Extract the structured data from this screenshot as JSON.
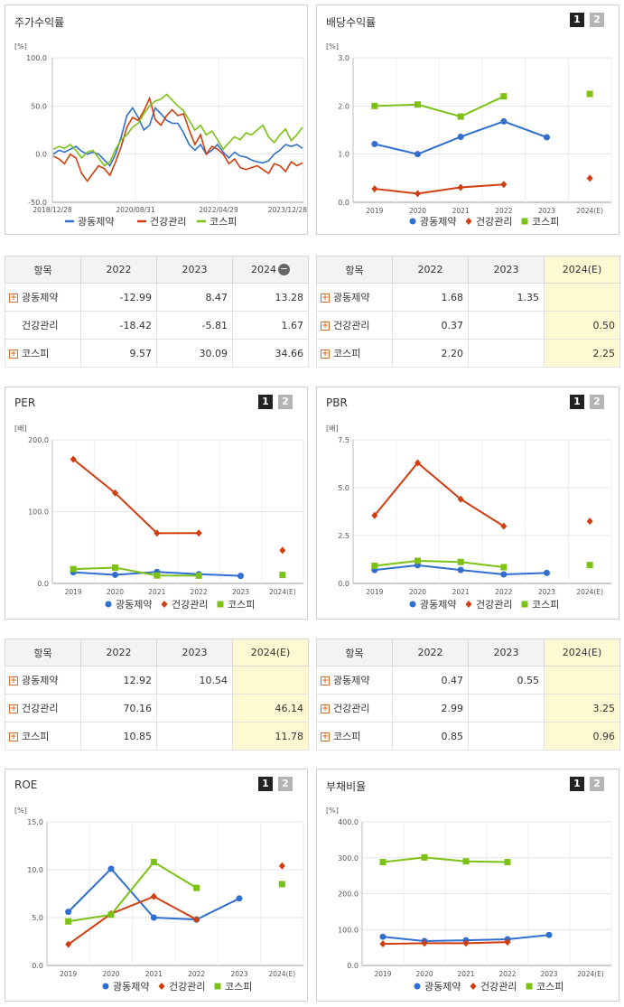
{
  "colors": {
    "company": "#2f6fd0",
    "industry": "#d23d0f",
    "kospi": "#7cc215"
  },
  "legend": [
    "광동제약",
    "건강관리",
    "코스피"
  ],
  "tab_buttons": [
    "1",
    "2"
  ],
  "charts": {
    "price": {
      "title": "주가수익률",
      "unit": "[%]",
      "y_ticks": [
        "100.0",
        "50.0",
        "0.0",
        "-50.0"
      ],
      "x_ticks": [
        "2018/12/28",
        "2020/08/31",
        "2022/04/29",
        "2023/12/28"
      ]
    },
    "dividend": {
      "title": "배당수익률",
      "unit": "[%]",
      "y_ticks": [
        "3.0",
        "2.0",
        "1.0",
        "0.0"
      ],
      "x_ticks": [
        "2019",
        "2020",
        "2021",
        "2022",
        "2023",
        "2024(E)"
      ]
    },
    "per": {
      "title": "PER",
      "unit": "[배]",
      "y_ticks": [
        "200.0",
        "100.0",
        "0.0"
      ],
      "x_ticks": [
        "2019",
        "2020",
        "2021",
        "2022",
        "2023",
        "2024(E)"
      ]
    },
    "pbr": {
      "title": "PBR",
      "unit": "[배]",
      "y_ticks": [
        "7.5",
        "5.0",
        "2.5",
        "0.0"
      ],
      "x_ticks": [
        "2019",
        "2020",
        "2021",
        "2022",
        "2023",
        "2024(E)"
      ]
    },
    "roe": {
      "title": "ROE",
      "unit": "[%]",
      "y_ticks": [
        "15.0",
        "10.0",
        "5.0",
        "0.0"
      ],
      "x_ticks": [
        "2019",
        "2020",
        "2021",
        "2022",
        "2023",
        "2024(E)"
      ]
    },
    "debt": {
      "title": "부채비율",
      "unit": "[%]",
      "y_ticks": [
        "400.0",
        "300.0",
        "200.0",
        "100.0",
        "0.0"
      ],
      "x_ticks": [
        "2019",
        "2020",
        "2021",
        "2022",
        "2023",
        "2024(E)"
      ]
    }
  },
  "tables": {
    "price": {
      "headers": [
        "항목",
        "2022",
        "2023",
        "2024"
      ],
      "rows": [
        {
          "name": "광동제약",
          "vals": [
            "-12.99",
            "8.47",
            "13.28"
          ]
        },
        {
          "name": "건강관리",
          "vals": [
            "-18.42",
            "-5.81",
            "1.67"
          ]
        },
        {
          "name": "코스피",
          "vals": [
            "9.57",
            "30.09",
            "34.66"
          ]
        }
      ]
    },
    "dividend": {
      "headers": [
        "항목",
        "2022",
        "2023",
        "2024(E)"
      ],
      "rows": [
        {
          "name": "광동제약",
          "vals": [
            "1.68",
            "1.35",
            ""
          ]
        },
        {
          "name": "건강관리",
          "vals": [
            "0.37",
            "",
            "0.50"
          ]
        },
        {
          "name": "코스피",
          "vals": [
            "2.20",
            "",
            "2.25"
          ]
        }
      ]
    },
    "per": {
      "headers": [
        "항목",
        "2022",
        "2023",
        "2024(E)"
      ],
      "rows": [
        {
          "name": "광동제약",
          "vals": [
            "12.92",
            "10.54",
            ""
          ]
        },
        {
          "name": "건강관리",
          "vals": [
            "70.16",
            "",
            "46.14"
          ]
        },
        {
          "name": "코스피",
          "vals": [
            "10.85",
            "",
            "11.78"
          ]
        }
      ]
    },
    "pbr": {
      "headers": [
        "항목",
        "2022",
        "2023",
        "2024(E)"
      ],
      "rows": [
        {
          "name": "광동제약",
          "vals": [
            "0.47",
            "0.55",
            ""
          ]
        },
        {
          "name": "건강관리",
          "vals": [
            "2.99",
            "",
            "3.25"
          ]
        },
        {
          "name": "코스피",
          "vals": [
            "0.85",
            "",
            "0.96"
          ]
        }
      ]
    }
  },
  "chart_data": [
    {
      "id": "price",
      "type": "line",
      "title": "주가수익률",
      "ylabel": "[%]",
      "ylim": [
        -50,
        100
      ],
      "x_range": [
        "2018/12/28",
        "2023/12/28"
      ],
      "series": [
        {
          "name": "광동제약",
          "values": [
            0,
            4,
            2,
            5,
            8,
            3,
            0,
            2,
            0,
            -6,
            -12,
            0,
            18,
            40,
            48,
            38,
            25,
            30,
            48,
            42,
            35,
            32,
            32,
            22,
            10,
            4,
            10,
            0,
            4,
            10,
            2,
            -4,
            2,
            -2,
            -3,
            -6,
            -8,
            -9,
            -7,
            0,
            4,
            10,
            8,
            10,
            6
          ]
        },
        {
          "name": "건강관리",
          "values": [
            -2,
            -5,
            -10,
            0,
            -4,
            -20,
            -28,
            -20,
            -12,
            -15,
            -22,
            -8,
            8,
            28,
            38,
            35,
            45,
            58,
            36,
            30,
            40,
            46,
            40,
            42,
            25,
            10,
            20,
            0,
            8,
            5,
            0,
            -10,
            -5,
            -14,
            -16,
            -14,
            -12,
            -16,
            -20,
            -10,
            -12,
            -18,
            -8,
            -12,
            -9
          ]
        },
        {
          "name": "코스피",
          "values": [
            5,
            8,
            6,
            10,
            4,
            -4,
            2,
            4,
            -4,
            -12,
            -8,
            5,
            15,
            20,
            28,
            32,
            42,
            50,
            55,
            57,
            62,
            56,
            50,
            45,
            35,
            25,
            30,
            20,
            24,
            15,
            5,
            12,
            18,
            15,
            22,
            20,
            25,
            30,
            18,
            12,
            20,
            26,
            14,
            20,
            28
          ]
        }
      ]
    },
    {
      "id": "dividend",
      "type": "line",
      "title": "배당수익률",
      "ylabel": "[%]",
      "ylim": [
        0,
        3
      ],
      "categories": [
        "2019",
        "2020",
        "2021",
        "2022",
        "2023",
        "2024(E)"
      ],
      "series": [
        {
          "name": "광동제약",
          "values": [
            1.21,
            1.0,
            1.36,
            1.68,
            1.35,
            null
          ]
        },
        {
          "name": "건강관리",
          "values": [
            0.28,
            0.18,
            0.31,
            0.37,
            null,
            0.5
          ]
        },
        {
          "name": "코스피",
          "values": [
            2.0,
            2.03,
            1.78,
            2.2,
            null,
            2.25
          ]
        }
      ]
    },
    {
      "id": "per",
      "type": "line",
      "title": "PER",
      "ylabel": "[배]",
      "ylim": [
        0,
        200
      ],
      "categories": [
        "2019",
        "2020",
        "2021",
        "2022",
        "2023",
        "2024(E)"
      ],
      "series": [
        {
          "name": "광동제약",
          "values": [
            15.5,
            12.0,
            16.0,
            12.92,
            10.54,
            null
          ]
        },
        {
          "name": "건강관리",
          "values": [
            173.0,
            126.0,
            70.0,
            70.16,
            null,
            46.14
          ]
        },
        {
          "name": "코스피",
          "values": [
            20.0,
            22.0,
            11.0,
            10.85,
            null,
            11.78
          ]
        }
      ]
    },
    {
      "id": "pbr",
      "type": "line",
      "title": "PBR",
      "ylabel": "[배]",
      "ylim": [
        0,
        7.5
      ],
      "categories": [
        "2019",
        "2020",
        "2021",
        "2022",
        "2023",
        "2024(E)"
      ],
      "series": [
        {
          "name": "광동제약",
          "values": [
            0.7,
            0.95,
            0.7,
            0.47,
            0.55,
            null
          ]
        },
        {
          "name": "건강관리",
          "values": [
            3.55,
            6.3,
            4.4,
            2.99,
            null,
            3.25
          ]
        },
        {
          "name": "코스피",
          "values": [
            0.92,
            1.18,
            1.12,
            0.85,
            null,
            0.96
          ]
        }
      ]
    },
    {
      "id": "roe",
      "type": "line",
      "title": "ROE",
      "ylabel": "[%]",
      "ylim": [
        0,
        15
      ],
      "categories": [
        "2019",
        "2020",
        "2021",
        "2022",
        "2023",
        "2024(E)"
      ],
      "series": [
        {
          "name": "광동제약",
          "values": [
            5.6,
            10.1,
            5.0,
            4.8,
            7.0,
            null
          ]
        },
        {
          "name": "건강관리",
          "values": [
            2.2,
            5.4,
            7.2,
            4.8,
            null,
            10.4
          ]
        },
        {
          "name": "코스피",
          "values": [
            4.6,
            5.3,
            10.8,
            8.1,
            null,
            8.5
          ]
        }
      ]
    },
    {
      "id": "debt",
      "type": "line",
      "title": "부채비율",
      "ylabel": "[%]",
      "ylim": [
        0,
        400
      ],
      "categories": [
        "2019",
        "2020",
        "2021",
        "2022",
        "2023",
        "2024(E)"
      ],
      "series": [
        {
          "name": "광동제약",
          "values": [
            80,
            68,
            70,
            73,
            85,
            null
          ]
        },
        {
          "name": "건강관리",
          "values": [
            60,
            62,
            62,
            65,
            null,
            null
          ]
        },
        {
          "name": "코스피",
          "values": [
            288,
            301,
            290,
            288,
            null,
            null
          ]
        }
      ]
    }
  ]
}
